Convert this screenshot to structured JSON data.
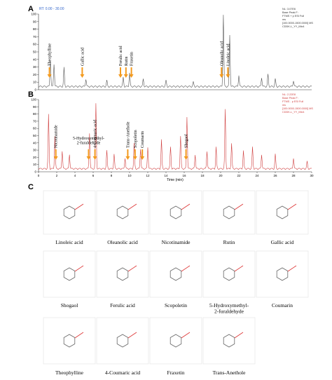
{
  "panels": [
    {
      "label": "A",
      "header": "RT: 0.00 - 30.00",
      "info": [
        "NL: 3.07E6",
        "Base Peak F:",
        "FTMS + p ESI Full",
        "ms",
        "[100.0000-1500.0000] MS",
        "CDDK-L_YY_Mix4"
      ],
      "yticks": [
        0,
        10,
        20,
        30,
        40,
        50,
        60,
        70,
        80,
        90,
        100
      ],
      "annotations": [
        "Theophylline",
        "Gallic acid",
        "Ferulic acid",
        "Rutin",
        "Fraxetin",
        "Oleanolic acid",
        "Linoleic acid"
      ]
    },
    {
      "label": "B",
      "info": [
        "NL: 2.22E8",
        "Base Peak F:",
        "FTMS - p ESI Full",
        "ms",
        "[100.0000-1500.0000] MS",
        "CDDK-L_YY_Mix4"
      ],
      "yticks": [
        0,
        10,
        20,
        30,
        40,
        50,
        60,
        70,
        80,
        90,
        100
      ],
      "annotations": [
        "Nicotinamide",
        "5-Hydroxymethyl-\n2-furaldehyde",
        "4-Coumaric acid",
        "Trans-Anethole",
        "Scopoletin",
        "Coumarin",
        "Shogaol"
      ],
      "xticks": [
        0,
        2,
        4,
        6,
        8,
        10,
        12,
        14,
        16,
        18,
        20,
        22,
        24,
        26,
        28,
        30
      ],
      "x_label": "Time (min)"
    }
  ],
  "panel_c_label": "C",
  "compounds": [
    "Linoleic acid",
    "Oleanolic acid",
    "Nicotinamide",
    "Rutin",
    "Gallic acid",
    "Shogaol",
    "Ferulic acid",
    "Scopoletin",
    "5-Hydroxymethyl-\n2-furaldehyde",
    "Coumarin",
    "Theophylline",
    "4-Coumaric acid",
    "Fraxetin",
    "Trans-Anethole"
  ]
}
